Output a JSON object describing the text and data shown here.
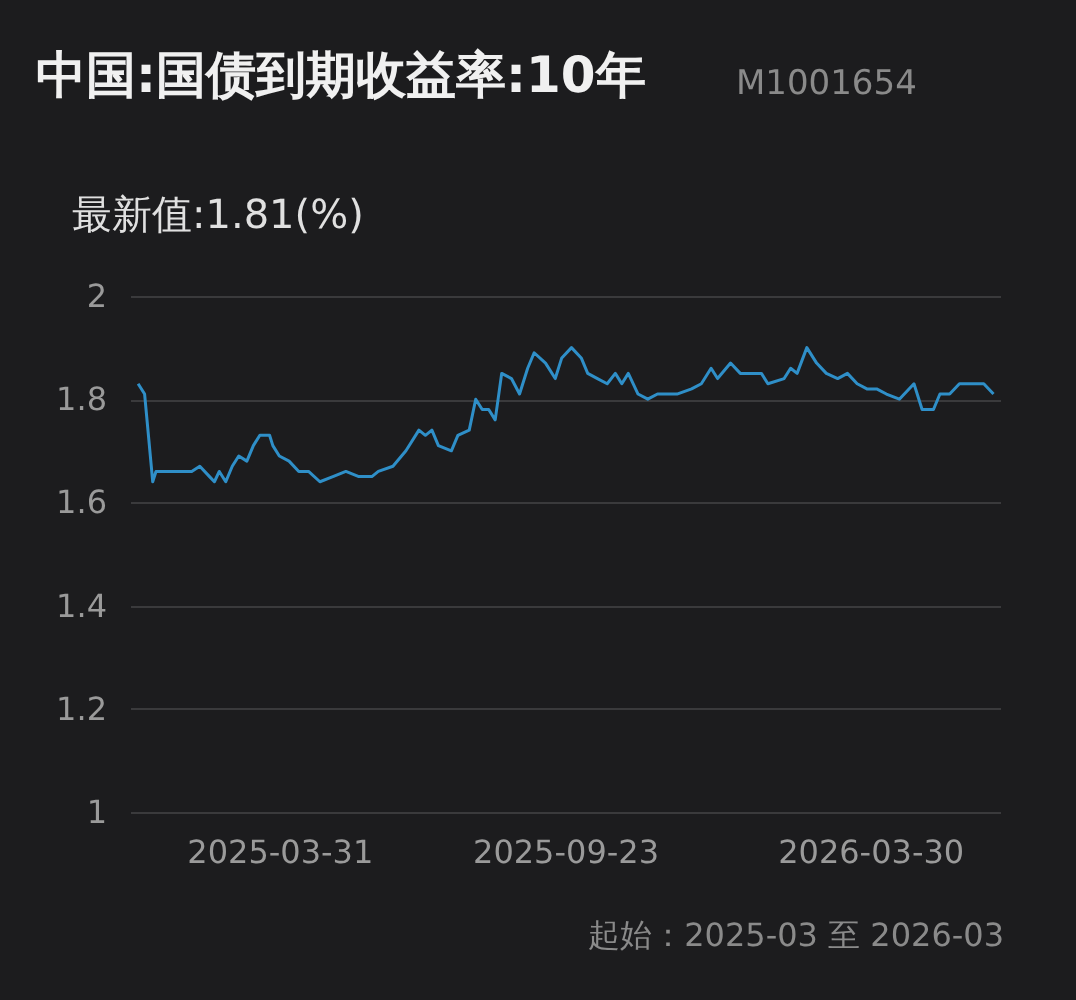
{
  "chart_data": {
    "type": "line",
    "title": "中国:国债到期收益率:10年",
    "subtitle": "最新值:1.81(%)",
    "annotations": [
      "M1001654",
      "起始：2025-03 至 2026-03"
    ],
    "x": [
      "2025-01-03",
      "2025-01-07",
      "2025-01-12",
      "2025-01-14",
      "2025-01-18",
      "2025-01-22",
      "2025-01-27",
      "2025-01-31",
      "2025-02-05",
      "2025-02-10",
      "2025-02-16",
      "2025-02-19",
      "2025-02-22",
      "2025-02-26",
      "2025-03-02",
      "2025-03-06",
      "2025-03-11",
      "2025-03-15",
      "2025-03-19",
      "2025-03-25",
      "2025-03-27",
      "2025-03-31",
      "2025-04-06",
      "2025-04-12",
      "2025-04-18",
      "2025-04-25",
      "2025-05-03",
      "2025-05-11",
      "2025-05-19",
      "2025-05-27",
      "2025-05-31",
      "2025-06-09",
      "2025-06-17",
      "2025-06-25",
      "2025-06-29",
      "2025-07-03",
      "2025-07-07",
      "2025-07-15",
      "2025-07-19",
      "2025-07-26",
      "2025-07-30",
      "2025-08-03",
      "2025-08-07",
      "2025-08-11",
      "2025-08-15",
      "2025-08-21",
      "2025-08-26",
      "2025-08-31",
      "2025-09-04",
      "2025-09-11",
      "2025-09-17",
      "2025-09-21",
      "2025-09-27",
      "2025-10-03",
      "2025-10-07",
      "2025-10-13",
      "2025-10-19",
      "2025-10-24",
      "2025-10-28",
      "2025-11-01",
      "2025-11-07",
      "2025-11-13",
      "2025-11-19",
      "2025-12-01",
      "2025-12-10",
      "2025-12-16",
      "2025-12-22",
      "2025-12-26",
      "2026-01-03",
      "2026-01-09",
      "2026-01-15",
      "2026-01-22",
      "2026-01-26",
      "2026-02-05",
      "2026-02-09",
      "2026-02-13",
      "2026-02-19",
      "2026-02-25",
      "2026-03-03",
      "2026-03-10",
      "2026-03-16",
      "2026-03-22",
      "2026-03-28",
      "2026-04-03",
      "2026-04-09",
      "2026-04-17",
      "2026-04-26",
      "2026-05-01",
      "2026-05-08",
      "2026-05-12",
      "2026-05-18",
      "2026-05-24",
      "2026-05-28",
      "2026-06-04",
      "2026-06-08",
      "2026-06-14"
    ],
    "series": [
      {
        "color": "#2f8fc8",
        "values": [
          1.83,
          1.81,
          1.64,
          1.66,
          1.66,
          1.66,
          1.66,
          1.66,
          1.66,
          1.67,
          1.65,
          1.64,
          1.66,
          1.64,
          1.67,
          1.69,
          1.68,
          1.71,
          1.73,
          1.73,
          1.71,
          1.69,
          1.68,
          1.66,
          1.66,
          1.64,
          1.65,
          1.66,
          1.65,
          1.65,
          1.66,
          1.67,
          1.7,
          1.74,
          1.73,
          1.74,
          1.71,
          1.7,
          1.73,
          1.74,
          1.8,
          1.78,
          1.78,
          1.76,
          1.85,
          1.84,
          1.81,
          1.86,
          1.89,
          1.87,
          1.84,
          1.88,
          1.9,
          1.88,
          1.85,
          1.84,
          1.83,
          1.85,
          1.83,
          1.85,
          1.81,
          1.8,
          1.81,
          1.81,
          1.82,
          1.83,
          1.86,
          1.84,
          1.87,
          1.85,
          1.85,
          1.85,
          1.83,
          1.84,
          1.86,
          1.85,
          1.9,
          1.87,
          1.85,
          1.84,
          1.85,
          1.83,
          1.82,
          1.82,
          1.81,
          1.8,
          1.83,
          1.78,
          1.78,
          1.81,
          1.81,
          1.83,
          1.83,
          1.83,
          1.83,
          1.81
        ]
      }
    ],
    "xlim": [
      "2024-12-29",
      "2026-06-18"
    ],
    "xticks": [
      "2025-03-31",
      "2025-09-23",
      "2026-03-30"
    ],
    "ylim": [
      1,
      2
    ],
    "yticks": [
      1,
      1.2,
      1.4,
      1.6,
      1.8,
      2
    ],
    "grid": "y",
    "marker": "none",
    "line_style": "solid"
  }
}
